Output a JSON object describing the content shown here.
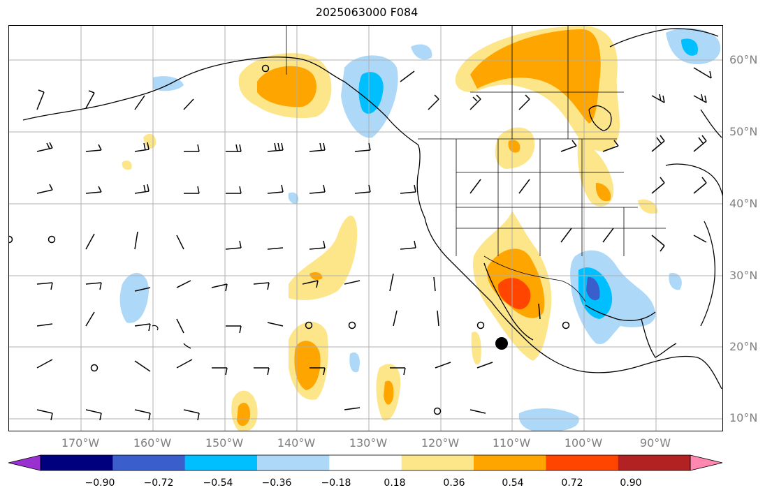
{
  "title": "2025063000 F084",
  "latitude_labels": [
    "60°N",
    "50°N",
    "40°N",
    "30°N",
    "20°N",
    "10°N"
  ],
  "longitude_labels": [
    "170°W",
    "160°W",
    "150°W",
    "140°W",
    "130°W",
    "120°W",
    "110°W",
    "100°W",
    "90°W"
  ],
  "colorbar": {
    "tick_labels": [
      "−0.90",
      "−0.72",
      "−0.54",
      "−0.36",
      "−0.18",
      "0.18",
      "0.36",
      "0.54",
      "0.72",
      "0.90"
    ],
    "colors": [
      "#9b30d0",
      "#00007f",
      "#3a5fcd",
      "#00bfff",
      "#add8f7",
      "#ffffff",
      "#fde68a",
      "#ffa500",
      "#ff4500",
      "#b22222",
      "#ff88b0"
    ]
  },
  "colors": {
    "pale_yellow": "#fde68a",
    "orange": "#ffa500",
    "red_orange": "#ff4500",
    "light_blue": "#add8f7",
    "deep_sky_blue": "#00bfff",
    "royal_blue": "#3a5fcd"
  }
}
